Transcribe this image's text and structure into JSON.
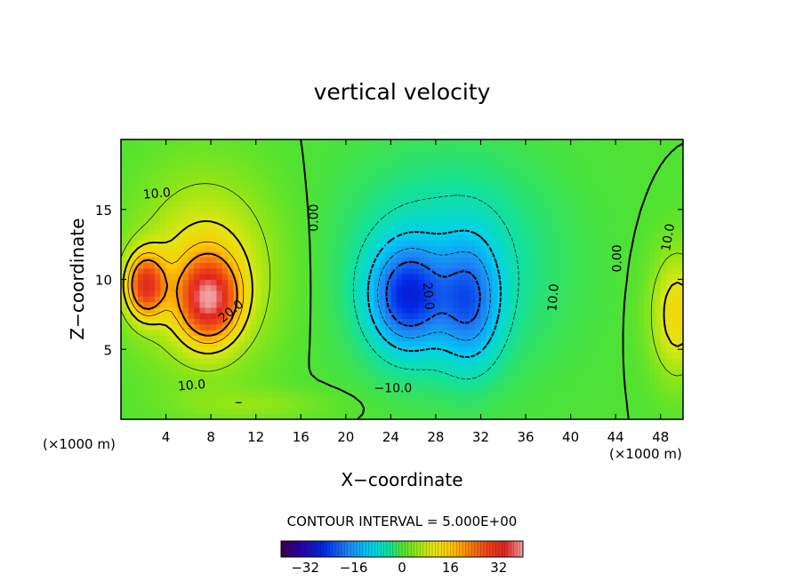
{
  "chart_data": {
    "type": "heatmap",
    "title": "vertical velocity",
    "xlabel": "X−coordinate",
    "ylabel": "Z−coordinate",
    "x_unit_left": "(×1000 m)",
    "x_unit_right": "(×1000 m)",
    "xlim": [
      0,
      50
    ],
    "ylim": [
      0,
      20
    ],
    "x_ticks": [
      "4",
      "8",
      "12",
      "16",
      "20",
      "24",
      "28",
      "32",
      "36",
      "40",
      "44",
      "48"
    ],
    "x_tick_values": [
      4,
      8,
      12,
      16,
      20,
      24,
      28,
      32,
      36,
      40,
      44,
      48
    ],
    "y_ticks": [
      "5",
      "10",
      "15"
    ],
    "y_tick_values": [
      5,
      10,
      15
    ],
    "contour_interval_label": "CONTOUR INTERVAL = 5.000E+00",
    "contour_interval": 5.0,
    "colorbar_range": [
      -40,
      40
    ],
    "colorbar_ticks": [
      "−32",
      "−16",
      "0",
      "16",
      "32"
    ],
    "colorbar_tick_values": [
      -32,
      -16,
      0,
      16,
      32
    ],
    "contour_labels": [
      {
        "text": "10.0",
        "x": 3.2,
        "z": 16.1,
        "angle": -5
      },
      {
        "text": "0.00",
        "x": 17.2,
        "z": 14.4,
        "angle": -90
      },
      {
        "text": "20.0",
        "x": 9.8,
        "z": 7.7,
        "angle": -40
      },
      {
        "text": "10.0",
        "x": 6.3,
        "z": 2.4,
        "angle": -5
      },
      {
        "text": "20.0",
        "x": 27.3,
        "z": 8.8,
        "angle": 85
      },
      {
        "text": "10.0",
        "x": 38.5,
        "z": 8.7,
        "angle": -85
      },
      {
        "text": "−10.0",
        "x": 24.2,
        "z": 2.2,
        "angle": 0
      },
      {
        "text": "0.00",
        "x": 44.2,
        "z": 11.5,
        "angle": -90
      },
      {
        "text": "10.0",
        "x": 48.7,
        "z": 13.0,
        "angle": -80
      }
    ],
    "features": [
      {
        "kind": "updraft",
        "x": 2.5,
        "z": 9.5,
        "peak": 27
      },
      {
        "kind": "updraft",
        "x": 8.0,
        "z": 8.5,
        "peak": 29
      },
      {
        "kind": "downdraft",
        "x": 25.5,
        "z": 9.0,
        "peak": -23
      },
      {
        "kind": "downdraft",
        "x": 31.0,
        "z": 8.0,
        "peak": -18
      },
      {
        "kind": "updraft",
        "x": 49.0,
        "z": 7.0,
        "peak": 13
      }
    ]
  }
}
